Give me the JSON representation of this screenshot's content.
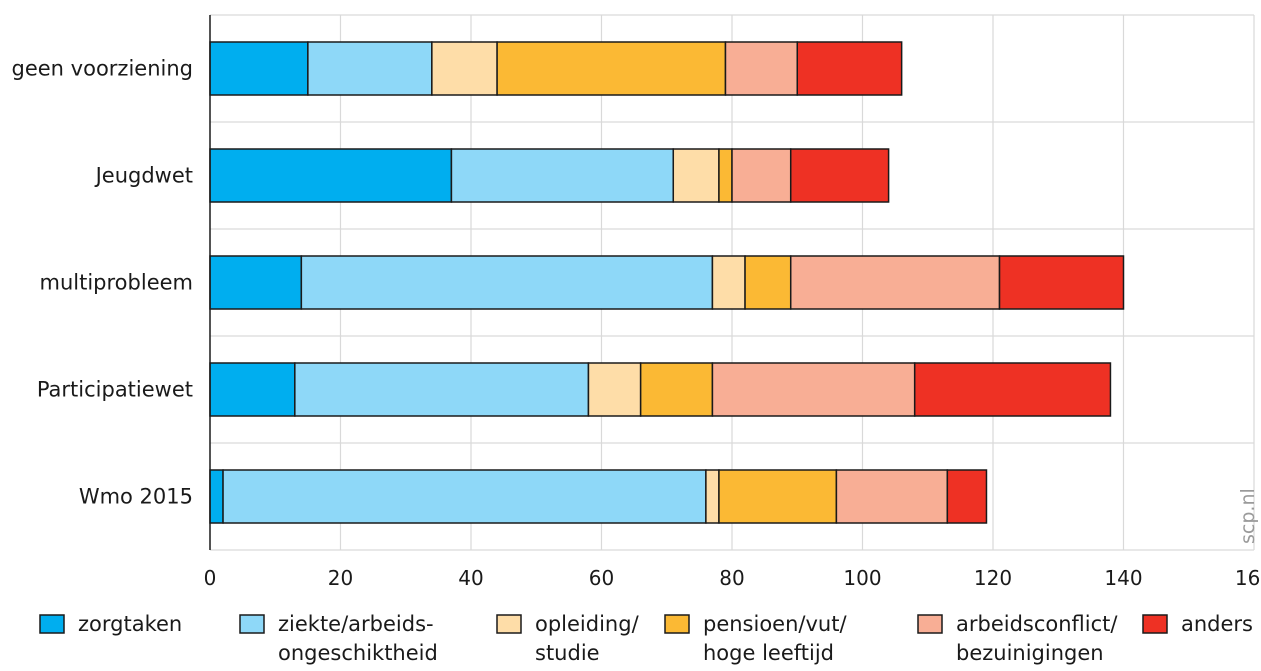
{
  "chart_data": {
    "type": "bar",
    "orientation": "horizontal",
    "stacked": true,
    "categories": [
      "geen voorziening",
      "Jeugdwet",
      "multiprobleem",
      "Participatiewet",
      "Wmo 2015"
    ],
    "series": [
      {
        "name": "zorgtaken",
        "name_lines": [
          "zorgtaken"
        ],
        "color": "#00aeef",
        "values": [
          15,
          37,
          14,
          13,
          2
        ]
      },
      {
        "name": "ziekte/arbeids-ongeschiktheid",
        "name_lines": [
          "ziekte/arbeids-",
          "ongeschiktheid"
        ],
        "color": "#8ed8f8",
        "values": [
          19,
          34,
          63,
          45,
          74
        ]
      },
      {
        "name": "opleiding/studie",
        "name_lines": [
          "opleiding/",
          "studie"
        ],
        "color": "#fedda8",
        "values": [
          10,
          7,
          5,
          8,
          2
        ]
      },
      {
        "name": "pensioen/vut/hoge leeftijd",
        "name_lines": [
          "pensioen/vut/",
          "hoge leeftijd"
        ],
        "color": "#fbb934",
        "values": [
          35,
          2,
          7,
          11,
          18
        ]
      },
      {
        "name": "arbeidsconflict/bezuinigingen",
        "name_lines": [
          "arbeidsconflict/",
          "bezuinigingen"
        ],
        "color": "#f8ae95",
        "values": [
          11,
          9,
          32,
          31,
          17
        ]
      },
      {
        "name": "anders",
        "name_lines": [
          "anders"
        ],
        "color": "#ee3124",
        "values": [
          16,
          15,
          19,
          30,
          6
        ]
      }
    ],
    "xlim": [
      0,
      160
    ],
    "xticks": [
      0,
      20,
      40,
      60,
      80,
      100,
      120,
      140,
      160
    ],
    "xtick_labels": [
      "0",
      "20",
      "40",
      "60",
      "80",
      "100",
      "120",
      "140",
      "160"
    ],
    "grid": true,
    "legend_position": "bottom",
    "watermark": "scp.nl"
  }
}
